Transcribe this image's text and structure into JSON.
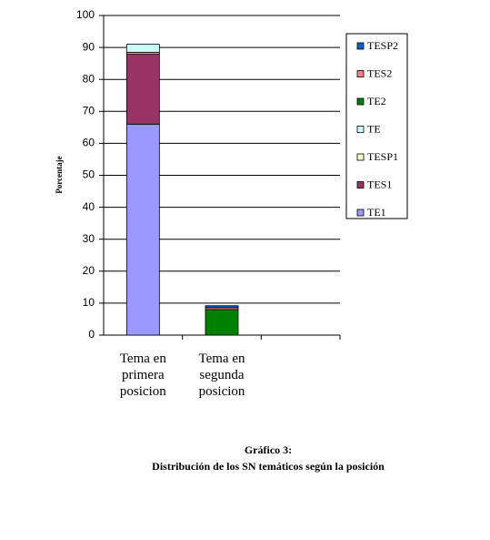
{
  "chart_data": {
    "type": "stacked_bar",
    "title": "Gráfico 3:",
    "subtitle": "Distribución de los SN temáticos según la posición",
    "y_label": "Porcentaje",
    "categories": [
      "Tema en primera posicion",
      "Tema en segunda posicion",
      null
    ],
    "series": [
      {
        "name": "TE1",
        "color": "#9999ff",
        "values": [
          66,
          0,
          0
        ]
      },
      {
        "name": "TES1",
        "color": "#993366",
        "values": [
          22,
          0,
          0
        ]
      },
      {
        "name": "TESP1",
        "color": "#ffffcc",
        "values": [
          0.5,
          0,
          0
        ]
      },
      {
        "name": "TE",
        "color": "#ccffff",
        "values": [
          2.5,
          0,
          0
        ]
      },
      {
        "name": "TE2",
        "color": "#008000",
        "values": [
          0,
          8,
          0
        ]
      },
      {
        "name": "TES2",
        "color": "#ff8080",
        "values": [
          0,
          0.6,
          0
        ]
      },
      {
        "name": "TESP2",
        "color": "#0066cc",
        "values": [
          0,
          0.6,
          0
        ]
      }
    ],
    "ylim": [
      0,
      100
    ],
    "yticks": [
      0,
      10,
      20,
      30,
      40,
      50,
      60,
      70,
      80,
      90,
      100
    ],
    "grid": true,
    "legend": "right"
  }
}
